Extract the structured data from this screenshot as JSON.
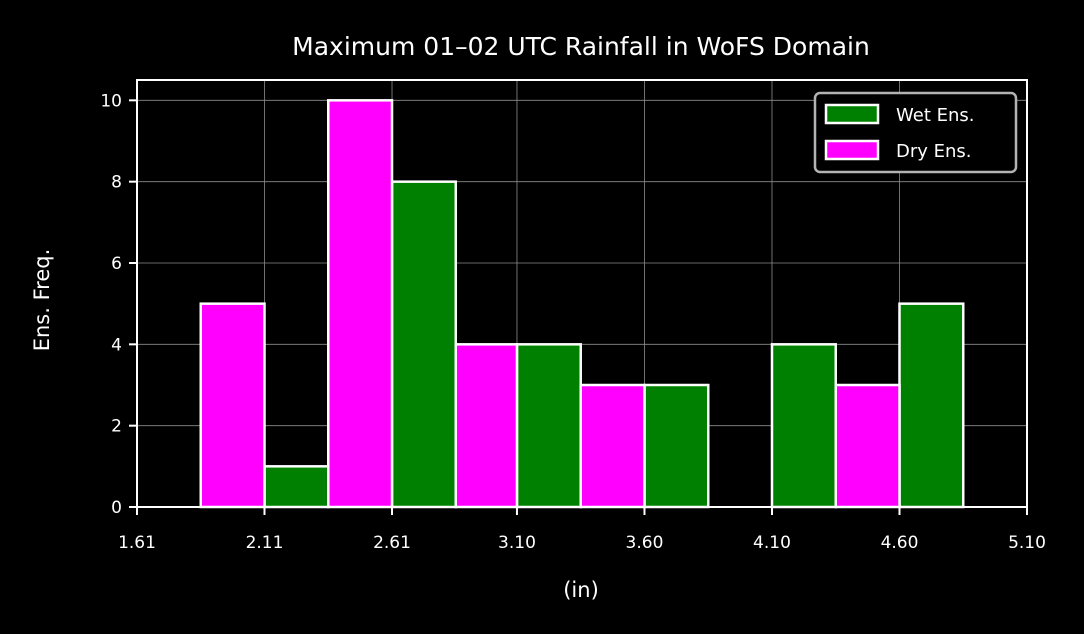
{
  "chart_data": {
    "type": "bar",
    "title": "Maximum 01–02 UTC Rainfall in WoFS Domain",
    "xlabel": "(in)",
    "ylabel": "Ens. Freq.",
    "xlim": [
      1.61,
      5.1
    ],
    "ylim": [
      0,
      10.5
    ],
    "x_ticks": [
      1.61,
      2.11,
      2.61,
      3.1,
      3.6,
      4.1,
      4.6,
      5.1
    ],
    "x_tick_labels": [
      "1.61",
      "2.11",
      "2.61",
      "3.10",
      "3.60",
      "4.10",
      "4.60",
      "5.10"
    ],
    "y_ticks": [
      0,
      2,
      4,
      6,
      8,
      10
    ],
    "y_tick_labels": [
      "0",
      "2",
      "4",
      "6",
      "8",
      "10"
    ],
    "bin_edges": [
      1.86,
      2.11,
      2.36,
      2.61,
      2.86,
      3.1,
      3.35,
      3.6,
      3.85,
      4.1,
      4.35,
      4.6,
      4.85
    ],
    "grid": true,
    "legend_position": "top-right",
    "series": [
      {
        "name": "Wet Ens.",
        "color": "#008000",
        "values": [
          0,
          1,
          0,
          8,
          0,
          4,
          0,
          3,
          0,
          4,
          0,
          5
        ]
      },
      {
        "name": "Dry Ens.",
        "color": "#ff00ff",
        "values": [
          5,
          0,
          10,
          0,
          4,
          0,
          3,
          0,
          0,
          0,
          3,
          0
        ]
      }
    ]
  },
  "colors": {
    "background": "#000000",
    "foreground": "#ffffff",
    "grid": "#8c8c8c",
    "legend_border": "#b3b3b3"
  }
}
